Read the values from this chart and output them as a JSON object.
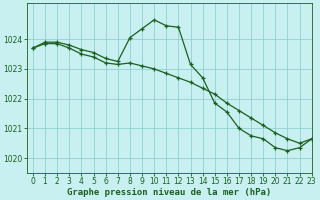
{
  "title": "Graphe pression niveau de la mer (hPa)",
  "background_color": "#c8f0f0",
  "grid_color": "#90d0d0",
  "line_color": "#1a6020",
  "xlim": [
    -0.5,
    23
  ],
  "ylim": [
    1019.5,
    1025.2
  ],
  "yticks": [
    1020,
    1021,
    1022,
    1023,
    1024
  ],
  "xticks": [
    0,
    1,
    2,
    3,
    4,
    5,
    6,
    7,
    8,
    9,
    10,
    11,
    12,
    13,
    14,
    15,
    16,
    17,
    18,
    19,
    20,
    21,
    22,
    23
  ],
  "series1_x": [
    0,
    1,
    2,
    3,
    4,
    5,
    6,
    7,
    8,
    9,
    10,
    11,
    12,
    13,
    14,
    15,
    16,
    17,
    18,
    19,
    20,
    21,
    22,
    23
  ],
  "series1_y": [
    1023.7,
    1023.9,
    1023.9,
    1023.8,
    1023.65,
    1023.55,
    1023.35,
    1023.25,
    1024.05,
    1024.35,
    1024.65,
    1024.45,
    1024.4,
    1023.15,
    1022.7,
    1021.85,
    1021.55,
    1021.0,
    1020.75,
    1020.65,
    1020.35,
    1020.25,
    1020.35,
    1020.65
  ],
  "series2_x": [
    0,
    1,
    2,
    3,
    4,
    5,
    6,
    7,
    8,
    9,
    10,
    11,
    12,
    13,
    14,
    15,
    16,
    17,
    18,
    19,
    20,
    21,
    22,
    23
  ],
  "series2_y": [
    1023.7,
    1023.85,
    1023.85,
    1023.7,
    1023.5,
    1023.4,
    1023.2,
    1023.15,
    1023.2,
    1023.1,
    1023.0,
    1022.85,
    1022.7,
    1022.55,
    1022.35,
    1022.15,
    1021.85,
    1021.6,
    1021.35,
    1021.1,
    1020.85,
    1020.65,
    1020.5,
    1020.65
  ],
  "xlabel_fontsize": 6.5,
  "tick_fontsize": 5.5,
  "linewidth": 0.9,
  "markersize": 3.5
}
